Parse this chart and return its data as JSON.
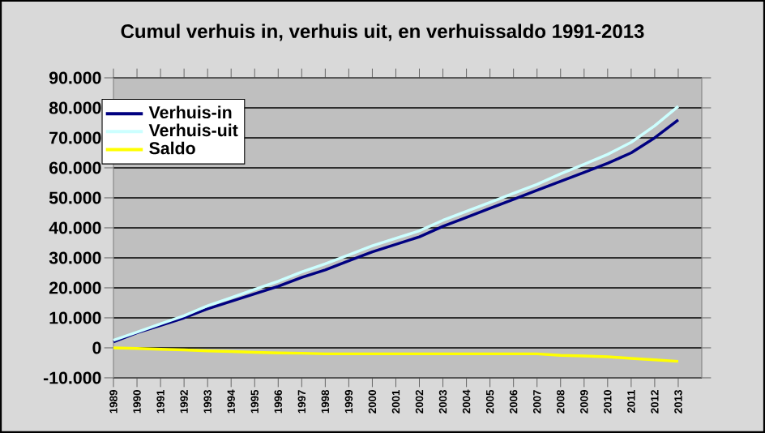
{
  "chart_data": {
    "type": "line",
    "title": "Cumul verhuis in, verhuis uit, en verhuissaldo 1991-2013",
    "categories": [
      "1989",
      "1990",
      "1991",
      "1992",
      "1993",
      "1994",
      "1995",
      "1996",
      "1997",
      "1998",
      "1999",
      "2000",
      "2001",
      "2002",
      "2003",
      "2004",
      "2005",
      "2006",
      "2007",
      "2008",
      "2009",
      "2010",
      "2011",
      "2012",
      "2013"
    ],
    "series": [
      {
        "name": "Verhuis-in",
        "color": "#000080",
        "values": [
          2000,
          5000,
          7500,
          10000,
          13000,
          15500,
          18000,
          20500,
          23500,
          26000,
          29000,
          32000,
          34500,
          37000,
          40500,
          43500,
          46500,
          49500,
          52500,
          55500,
          58500,
          61500,
          65000,
          70000,
          76000
        ]
      },
      {
        "name": "Verhuis-uit",
        "color": "#ccffff",
        "values": [
          2500,
          5200,
          8000,
          10700,
          14000,
          16700,
          19500,
          22200,
          25300,
          28000,
          31000,
          34000,
          36500,
          39000,
          42500,
          45500,
          48500,
          51500,
          54500,
          58000,
          61200,
          64500,
          68500,
          74000,
          80500
        ]
      },
      {
        "name": "Saldo",
        "color": "#ffff00",
        "values": [
          0,
          -200,
          -500,
          -700,
          -1000,
          -1200,
          -1500,
          -1700,
          -1800,
          -2000,
          -2000,
          -2000,
          -2000,
          -2000,
          -2000,
          -2000,
          -2000,
          -2000,
          -2000,
          -2500,
          -2700,
          -3000,
          -3500,
          -4000,
          -4500
        ]
      }
    ],
    "ylim": [
      -10000,
      90000
    ],
    "yticks": [
      {
        "value": -10000,
        "label": "-10.000"
      },
      {
        "value": 0,
        "label": "0"
      },
      {
        "value": 10000,
        "label": "10.000"
      },
      {
        "value": 20000,
        "label": "20.000"
      },
      {
        "value": 30000,
        "label": "30.000"
      },
      {
        "value": 40000,
        "label": "40.000"
      },
      {
        "value": 50000,
        "label": "50.000"
      },
      {
        "value": 60000,
        "label": "60.000"
      },
      {
        "value": 70000,
        "label": "70.000"
      },
      {
        "value": 80000,
        "label": "80.000"
      },
      {
        "value": 90000,
        "label": "90.000"
      }
    ],
    "grid": "y",
    "legend": "top left",
    "marker": "none",
    "line_style": "solid"
  }
}
